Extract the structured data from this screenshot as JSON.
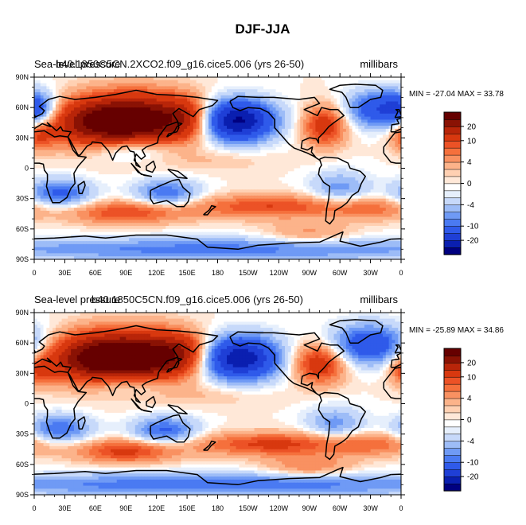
{
  "figure_title": "DJF-JJA",
  "chart_data": [
    {
      "type": "heatmap",
      "title_left": "Sea-level pressure",
      "title_case": "b40.1850C5CN.2XCO2.f09_g16.cice5.006 (yrs 26-50)",
      "units": "millibars",
      "stats_text": "MIN = -27.04 MAX =  33.78",
      "min": -27.04,
      "max": 33.78,
      "xlabel": "",
      "ylabel": "",
      "xlim": [
        0,
        360
      ],
      "ylim": [
        -90,
        90
      ],
      "x_ticks": [
        "0",
        "30E",
        "60E",
        "90E",
        "120E",
        "150E",
        "180",
        "150W",
        "120W",
        "90W",
        "60W",
        "30W",
        "0"
      ],
      "y_ticks": [
        "90N",
        "60N",
        "30N",
        "0",
        "30S",
        "60S",
        "90S"
      ],
      "colorbar_labels": [
        "20",
        "10",
        "4",
        "0",
        "-4",
        "-10",
        "-20"
      ],
      "colorbar_levels": [
        -25,
        -20,
        -15,
        -10,
        -8,
        -6,
        -4,
        -2,
        -1,
        0,
        1,
        2,
        4,
        6,
        8,
        10,
        15,
        20,
        25
      ],
      "colors": [
        "#000080",
        "#0a1fb0",
        "#1f3fd6",
        "#2f5aea",
        "#4a7af2",
        "#6f9af5",
        "#9dbcf7",
        "#c7d9fa",
        "#e6effc",
        "#ffffff",
        "#ffe8d8",
        "#ffd0b2",
        "#fcb38a",
        "#f99161",
        "#f5703c",
        "#ec5226",
        "#d8380f",
        "#b82509",
        "#8a1204",
        "#660000"
      ],
      "features": [
        {
          "lon": 100,
          "lat": 47,
          "amp": 30,
          "slon": 38,
          "slat": 18
        },
        {
          "lon": 50,
          "lat": 45,
          "amp": 14,
          "slon": 32,
          "slat": 16
        },
        {
          "lon": 150,
          "lat": 50,
          "amp": 10,
          "slon": 18,
          "slat": 14
        },
        {
          "lon": 198,
          "lat": 47,
          "amp": -27,
          "slon": 26,
          "slat": 14
        },
        {
          "lon": 285,
          "lat": 42,
          "amp": 13,
          "slon": 15,
          "slat": 14
        },
        {
          "lon": 340,
          "lat": 58,
          "amp": -14,
          "slon": 24,
          "slat": 13
        },
        {
          "lon": 2,
          "lat": 58,
          "amp": -9,
          "slon": 15,
          "slat": 12
        },
        {
          "lon": 5,
          "lat": 32,
          "amp": 8,
          "slon": 10,
          "slat": 10
        },
        {
          "lon": 95,
          "lat": 20,
          "amp": -9,
          "slon": 30,
          "slat": 9
        },
        {
          "lon": 25,
          "lat": -25,
          "amp": -11,
          "slon": 22,
          "slat": 10
        },
        {
          "lon": 130,
          "lat": -25,
          "amp": -10,
          "slon": 22,
          "slat": 10
        },
        {
          "lon": 300,
          "lat": -20,
          "amp": -7,
          "slon": 20,
          "slat": 12
        },
        {
          "lon": 90,
          "lat": -44,
          "amp": 10,
          "slon": 40,
          "slat": 8
        },
        {
          "lon": 230,
          "lat": -38,
          "amp": 10,
          "slon": 55,
          "slat": 8
        },
        {
          "lon": 330,
          "lat": -40,
          "amp": 6,
          "slon": 30,
          "slat": 8
        },
        {
          "lon": 180,
          "lat": -80,
          "amp": -9,
          "slon": 200,
          "slat": 8
        },
        {
          "lon": 270,
          "lat": -65,
          "amp": 5,
          "slon": 30,
          "slat": 8
        },
        {
          "lon": 180,
          "lat": 8,
          "amp": 2,
          "slon": 40,
          "slat": 8
        }
      ]
    },
    {
      "type": "heatmap",
      "title_left": "Sea-level pressure",
      "title_case": "b40.1850C5CN.f09_g16.cice5.006 (yrs 26-50)",
      "units": "millibars",
      "stats_text": "MIN = -25.89 MAX =  34.86",
      "min": -25.89,
      "max": 34.86,
      "xlabel": "",
      "ylabel": "",
      "xlim": [
        0,
        360
      ],
      "ylim": [
        -90,
        90
      ],
      "x_ticks": [
        "0",
        "30E",
        "60E",
        "90E",
        "120E",
        "150E",
        "180",
        "150W",
        "120W",
        "90W",
        "60W",
        "30W",
        "0"
      ],
      "y_ticks": [
        "90N",
        "60N",
        "30N",
        "0",
        "30S",
        "60S",
        "90S"
      ],
      "colorbar_labels": [
        "20",
        "10",
        "4",
        "0",
        "-4",
        "-10",
        "-20"
      ],
      "colorbar_levels": [
        -25,
        -20,
        -15,
        -10,
        -8,
        -6,
        -4,
        -2,
        -1,
        0,
        1,
        2,
        4,
        6,
        8,
        10,
        15,
        20,
        25
      ],
      "colors": [
        "#000080",
        "#0a1fb0",
        "#1f3fd6",
        "#2f5aea",
        "#4a7af2",
        "#6f9af5",
        "#9dbcf7",
        "#c7d9fa",
        "#e6effc",
        "#ffffff",
        "#ffe8d8",
        "#ffd0b2",
        "#fcb38a",
        "#f99161",
        "#f5703c",
        "#ec5226",
        "#d8380f",
        "#b82509",
        "#8a1204",
        "#660000"
      ],
      "features": [
        {
          "lon": 100,
          "lat": 45,
          "amp": 31,
          "slon": 40,
          "slat": 18
        },
        {
          "lon": 50,
          "lat": 45,
          "amp": 15,
          "slon": 32,
          "slat": 16
        },
        {
          "lon": 145,
          "lat": 52,
          "amp": 9,
          "slon": 18,
          "slat": 12
        },
        {
          "lon": 200,
          "lat": 45,
          "amp": -25,
          "slon": 28,
          "slat": 15
        },
        {
          "lon": 280,
          "lat": 40,
          "amp": 14,
          "slon": 18,
          "slat": 14
        },
        {
          "lon": 330,
          "lat": 58,
          "amp": -15,
          "slon": 28,
          "slat": 14
        },
        {
          "lon": 5,
          "lat": 33,
          "amp": 8,
          "slon": 10,
          "slat": 10
        },
        {
          "lon": 95,
          "lat": 20,
          "amp": -8,
          "slon": 30,
          "slat": 9
        },
        {
          "lon": 25,
          "lat": -25,
          "amp": -10,
          "slon": 22,
          "slat": 10
        },
        {
          "lon": 128,
          "lat": -27,
          "amp": -11,
          "slon": 22,
          "slat": 10
        },
        {
          "lon": 295,
          "lat": -20,
          "amp": -7,
          "slon": 20,
          "slat": 12
        },
        {
          "lon": 90,
          "lat": -47,
          "amp": 11,
          "slon": 35,
          "slat": 8
        },
        {
          "lon": 235,
          "lat": -40,
          "amp": 11,
          "slon": 55,
          "slat": 8
        },
        {
          "lon": 335,
          "lat": -40,
          "amp": 6,
          "slon": 30,
          "slat": 8
        },
        {
          "lon": 180,
          "lat": -80,
          "amp": -10,
          "slon": 200,
          "slat": 8
        },
        {
          "lon": 270,
          "lat": -62,
          "amp": 6,
          "slon": 30,
          "slat": 8
        },
        {
          "lon": 180,
          "lat": 8,
          "amp": 2,
          "slon": 40,
          "slat": 8
        }
      ]
    }
  ]
}
